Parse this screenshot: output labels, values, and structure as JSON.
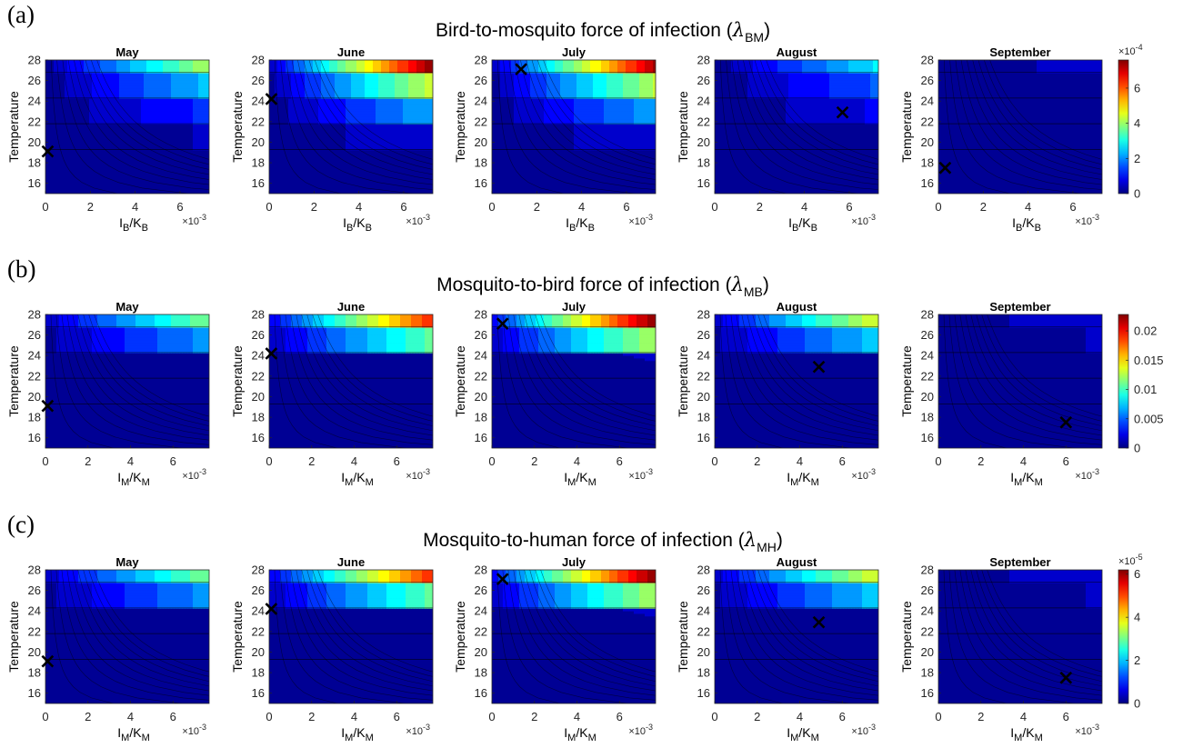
{
  "chart_data": {
    "type": "heatmap",
    "colormap": "jet",
    "months": [
      "May",
      "June",
      "July",
      "August",
      "September"
    ],
    "y_axis": {
      "label": "Temperature",
      "lim": [
        15,
        28
      ],
      "ticks": [
        "16",
        "18",
        "20",
        "22",
        "24",
        "26",
        "28"
      ]
    },
    "rows": [
      {
        "letter": "(a)",
        "title_prefix": "Bird-to-mosquito force of infection (",
        "title_lambda": "λ",
        "title_sub": "BM",
        "title_suffix": ")",
        "x_axis": {
          "var": "I",
          "var_sub": "B",
          "sep": "/",
          "denom": "K",
          "denom_sub": "B",
          "lim": [
            0,
            7.3
          ],
          "ticks": [
            "0",
            "2",
            "4",
            "6"
          ],
          "exponent_base": "×10",
          "exponent_power": "-3"
        },
        "colorbar": {
          "max": 7.6,
          "ticks": [
            "0",
            "2",
            "4",
            "6"
          ],
          "exponent_base": "×10",
          "exponent_power": "-4"
        },
        "month_scale": [
          0.55,
          1.0,
          0.96,
          0.36,
          0.08
        ],
        "markers": [
          {
            "x": 0.1,
            "y": 19.1
          },
          {
            "x": 0.1,
            "y": 24.2
          },
          {
            "x": 1.3,
            "y": 27.1
          },
          {
            "x": 5.7,
            "y": 22.9
          },
          {
            "x": 0.3,
            "y": 17.5
          }
        ]
      },
      {
        "letter": "(b)",
        "title_prefix": "Mosquito-to-bird force of infection (",
        "title_lambda": "λ",
        "title_sub": "MB",
        "title_suffix": ")",
        "x_axis": {
          "var": "I",
          "var_sub": "M",
          "sep": "/",
          "denom": "K",
          "denom_sub": "M",
          "lim": [
            0,
            7.7
          ],
          "ticks": [
            "0",
            "2",
            "4",
            "6"
          ],
          "exponent_base": "×10",
          "exponent_power": "-3"
        },
        "colorbar": {
          "max": 0.0228,
          "ticks": [
            "0",
            "0.005",
            "0.01",
            "0.015",
            "0.02"
          ]
        },
        "month_scale": [
          0.5,
          0.85,
          1.0,
          0.6,
          0.1
        ],
        "markers": [
          {
            "x": 0.1,
            "y": 19.1
          },
          {
            "x": 0.1,
            "y": 24.2
          },
          {
            "x": 0.5,
            "y": 27.1
          },
          {
            "x": 4.9,
            "y": 22.9
          },
          {
            "x": 6.0,
            "y": 17.5
          }
        ]
      },
      {
        "letter": "(c)",
        "title_prefix": "Mosquito-to-human force of infection (",
        "title_lambda": "λ",
        "title_sub": "MH",
        "title_suffix": ")",
        "x_axis": {
          "var": "I",
          "var_sub": "M",
          "sep": "/",
          "denom": "K",
          "denom_sub": "M",
          "lim": [
            0,
            7.7
          ],
          "ticks": [
            "0",
            "2",
            "4",
            "6"
          ],
          "exponent_base": "×10",
          "exponent_power": "-3"
        },
        "colorbar": {
          "max": 6.2,
          "ticks": [
            "0",
            "2",
            "4",
            "6"
          ],
          "exponent_base": "×10",
          "exponent_power": "-5"
        },
        "month_scale": [
          0.5,
          0.85,
          1.0,
          0.6,
          0.1
        ],
        "markers": [
          {
            "x": 0.1,
            "y": 19.1
          },
          {
            "x": 0.1,
            "y": 24.2
          },
          {
            "x": 0.5,
            "y": 27.1
          },
          {
            "x": 4.9,
            "y": 22.9
          },
          {
            "x": 6.0,
            "y": 17.5
          }
        ]
      }
    ]
  }
}
